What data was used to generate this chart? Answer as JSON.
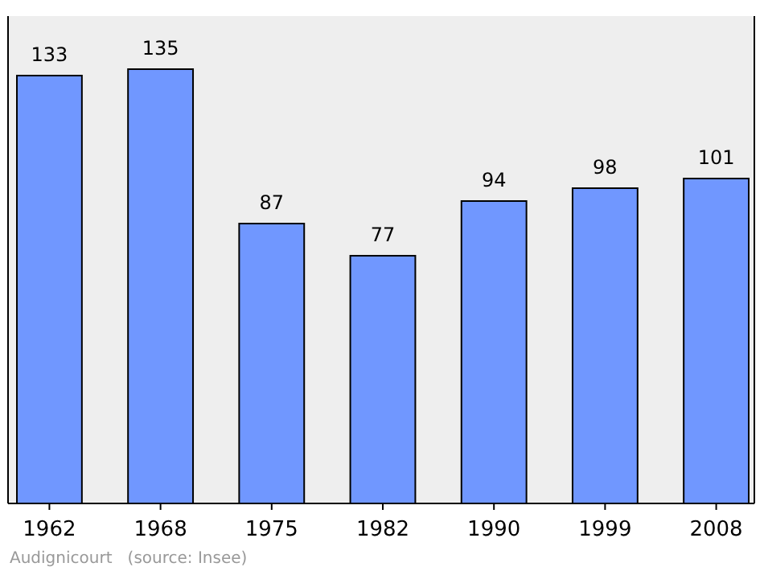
{
  "chart_data": {
    "type": "bar",
    "categories": [
      "1962",
      "1968",
      "1975",
      "1982",
      "1990",
      "1999",
      "2008"
    ],
    "values": [
      133,
      135,
      87,
      77,
      94,
      98,
      101
    ],
    "color": "#7097ff",
    "data_labels": true,
    "annotations": [
      "Audignicourt   (source: Insee)"
    ]
  }
}
